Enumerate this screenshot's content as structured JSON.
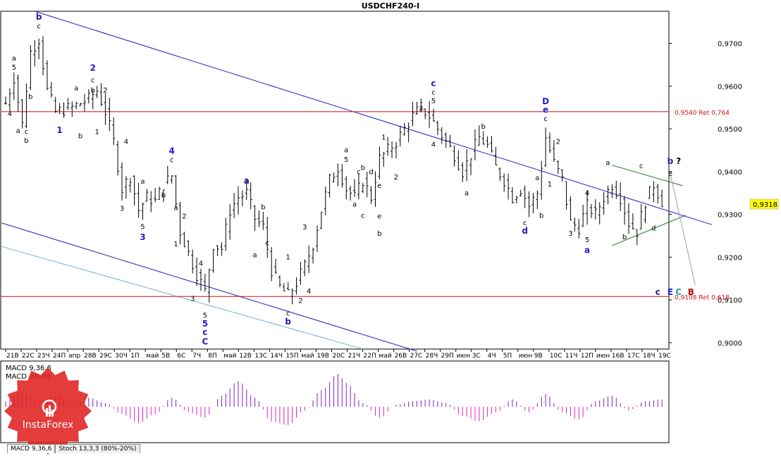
{
  "window": {
    "title": "USDCHF240-I",
    "price_tag": "0,9318"
  },
  "tabs": [
    {
      "label": "MACD 9,36,6",
      "active": true
    },
    {
      "label": "Stoch 13,3,3 (80%-20%)",
      "active": false
    }
  ],
  "brand": {
    "logo_text": "InstaForex",
    "color": "#e02020"
  },
  "colors": {
    "candle": "#000000",
    "channel": "#2020c0",
    "channel_light": "#70b0d8",
    "ret_line": "#d01010",
    "triangle": "#208020",
    "projection": "#a0a0a0",
    "macd_up": "#8020c0",
    "macd_down": "#e020c0"
  },
  "chart_data": {
    "type": "line",
    "symbol": "USDCHF240-I",
    "yaxis": {
      "ylim": [
        0.8985,
        0.9775
      ],
      "ticks": [
        "0,9000",
        "0,9100",
        "0,9200",
        "0,9300",
        "0,9400",
        "0,9500",
        "0,9600",
        "0,9700"
      ],
      "tick_values": [
        0.9,
        0.91,
        0.92,
        0.93,
        0.94,
        0.95,
        0.96,
        0.97
      ],
      "current": 0.9318
    },
    "xaxis": {
      "count": 159,
      "tick_labels": [
        "21B",
        "22C",
        "23Ч",
        "24П",
        "апр",
        "28B",
        "29C",
        "30Ч",
        "1П",
        "май",
        "5B",
        "6C",
        "7Ч",
        "8П",
        "май",
        "12B",
        "13C",
        "14Ч",
        "15П",
        "май",
        "19B",
        "20C",
        "21Ч",
        "22П",
        "май",
        "26B",
        "27C",
        "28Ч",
        "29П",
        "июн",
        "3C",
        "4Ч",
        "5П",
        "июн",
        "9B",
        "10C",
        "11Ч",
        "12П",
        "июн",
        "16B",
        "17C",
        "18Ч",
        "19C"
      ],
      "tick_index": [
        0,
        4,
        8,
        12,
        16,
        20,
        24,
        28,
        32,
        36,
        40,
        44,
        48,
        52,
        56,
        60,
        64,
        68,
        72,
        76,
        80,
        84,
        88,
        92,
        96,
        100,
        104,
        108,
        112,
        116,
        120,
        124,
        128,
        132,
        136,
        140,
        144,
        148,
        152,
        156,
        160,
        164,
        168
      ]
    },
    "anchors": [
      [
        0,
        0.956
      ],
      [
        2,
        0.962
      ],
      [
        4,
        0.951
      ],
      [
        6,
        0.968
      ],
      [
        8,
        0.971
      ],
      [
        10,
        0.959
      ],
      [
        12,
        0.954
      ],
      [
        16,
        0.955
      ],
      [
        20,
        0.957
      ],
      [
        22,
        0.959
      ],
      [
        24,
        0.954
      ],
      [
        26,
        0.947
      ],
      [
        28,
        0.936
      ],
      [
        30,
        0.939
      ],
      [
        32,
        0.931
      ],
      [
        34,
        0.934
      ],
      [
        36,
        0.933
      ],
      [
        38,
        0.937
      ],
      [
        40,
        0.939
      ],
      [
        42,
        0.926
      ],
      [
        44,
        0.921
      ],
      [
        46,
        0.916
      ],
      [
        48,
        0.912
      ],
      [
        50,
        0.923
      ],
      [
        52,
        0.922
      ],
      [
        54,
        0.931
      ],
      [
        56,
        0.934
      ],
      [
        58,
        0.935
      ],
      [
        60,
        0.929
      ],
      [
        62,
        0.927
      ],
      [
        64,
        0.917
      ],
      [
        66,
        0.913
      ],
      [
        68,
        0.911
      ],
      [
        70,
        0.914
      ],
      [
        72,
        0.918
      ],
      [
        74,
        0.923
      ],
      [
        76,
        0.931
      ],
      [
        78,
        0.938
      ],
      [
        80,
        0.941
      ],
      [
        82,
        0.936
      ],
      [
        84,
        0.934
      ],
      [
        86,
        0.938
      ],
      [
        88,
        0.934
      ],
      [
        90,
        0.943
      ],
      [
        92,
        0.945
      ],
      [
        94,
        0.947
      ],
      [
        96,
        0.95
      ],
      [
        98,
        0.953
      ],
      [
        100,
        0.955
      ],
      [
        102,
        0.953
      ],
      [
        104,
        0.95
      ],
      [
        106,
        0.947
      ],
      [
        108,
        0.944
      ],
      [
        110,
        0.94
      ],
      [
        112,
        0.944
      ],
      [
        114,
        0.948
      ],
      [
        116,
        0.946
      ],
      [
        118,
        0.941
      ],
      [
        120,
        0.938
      ],
      [
        122,
        0.934
      ],
      [
        124,
        0.936
      ],
      [
        126,
        0.932
      ],
      [
        128,
        0.935
      ],
      [
        130,
        0.948
      ],
      [
        132,
        0.942
      ],
      [
        134,
        0.938
      ],
      [
        136,
        0.928
      ],
      [
        138,
        0.927
      ],
      [
        140,
        0.932
      ],
      [
        142,
        0.93
      ],
      [
        144,
        0.934
      ],
      [
        146,
        0.937
      ],
      [
        148,
        0.934
      ],
      [
        150,
        0.928
      ],
      [
        152,
        0.926
      ],
      [
        154,
        0.933
      ],
      [
        156,
        0.937
      ],
      [
        158,
        0.933
      ]
    ],
    "macd": {
      "label": "MACD 9,36,6",
      "signal_label": "MACD =0,00",
      "anchors": [
        [
          0,
          0.3
        ],
        [
          4,
          0.8
        ],
        [
          8,
          0.3
        ],
        [
          12,
          0.6
        ],
        [
          16,
          0.1
        ],
        [
          20,
          0.5
        ],
        [
          24,
          0.2
        ],
        [
          28,
          -0.4
        ],
        [
          32,
          -0.9
        ],
        [
          36,
          -0.4
        ],
        [
          40,
          0.5
        ],
        [
          44,
          -0.3
        ],
        [
          48,
          -0.6
        ],
        [
          52,
          0.6
        ],
        [
          56,
          1.4
        ],
        [
          60,
          0.5
        ],
        [
          64,
          -0.8
        ],
        [
          68,
          -1.0
        ],
        [
          72,
          -0.2
        ],
        [
          76,
          0.9
        ],
        [
          80,
          1.8
        ],
        [
          82,
          1.3
        ],
        [
          86,
          0.2
        ],
        [
          90,
          -0.6
        ],
        [
          94,
          0.1
        ],
        [
          98,
          0.3
        ],
        [
          102,
          0.4
        ],
        [
          106,
          0.2
        ],
        [
          110,
          -0.5
        ],
        [
          114,
          -0.8
        ],
        [
          118,
          -0.3
        ],
        [
          122,
          0.4
        ],
        [
          126,
          -0.3
        ],
        [
          130,
          0.7
        ],
        [
          134,
          -0.3
        ],
        [
          138,
          -0.7
        ],
        [
          142,
          0.3
        ],
        [
          146,
          0.6
        ],
        [
          150,
          -0.2
        ],
        [
          154,
          0.3
        ],
        [
          158,
          0.4
        ]
      ]
    },
    "retracements": [
      {
        "value": 0.954,
        "label": "0,9540 Ret 0,764"
      },
      {
        "value": 0.9108,
        "label": "0,9108 Ret 0,618"
      }
    ],
    "trendlines": [
      {
        "role": "channel-upper",
        "from": [
          7,
          0.9775
        ],
        "to": [
          170,
          0.9276
        ]
      },
      {
        "role": "channel-lower",
        "from": [
          -1,
          0.928
        ],
        "to": [
          99,
          0.898
        ]
      },
      {
        "role": "channel-lower-light",
        "from": [
          -1,
          0.9225
        ],
        "to": [
          86,
          0.8985
        ]
      },
      {
        "role": "triangle-top",
        "from": [
          146,
          0.9415
        ],
        "to": [
          163,
          0.9367
        ]
      },
      {
        "role": "triangle-bottom",
        "from": [
          146,
          0.9227
        ],
        "to": [
          163,
          0.9295
        ]
      },
      {
        "role": "projection",
        "from": [
          160,
          0.9395
        ],
        "to": [
          166,
          0.9135
        ]
      }
    ],
    "wave_labels": [
      {
        "text": "b",
        "x": 8,
        "y": 0.9755,
        "color": "#2020a0"
      },
      {
        "text": "c",
        "x": 8,
        "y": 0.9735,
        "color": "#000000"
      },
      {
        "text": "a",
        "x": 2,
        "y": 0.966,
        "color": "#000000"
      },
      {
        "text": "5",
        "x": 2,
        "y": 0.9638,
        "color": "#000000"
      },
      {
        "text": "4",
        "x": 1,
        "y": 0.953,
        "color": "#000000"
      },
      {
        "text": "b",
        "x": 6,
        "y": 0.957,
        "color": "#000000"
      },
      {
        "text": "a",
        "x": 3,
        "y": 0.949,
        "color": "#000000"
      },
      {
        "text": "c",
        "x": 5,
        "y": 0.9488,
        "color": "#000000"
      },
      {
        "text": "b",
        "x": 5,
        "y": 0.9467,
        "color": "#000000"
      },
      {
        "text": "1",
        "x": 13,
        "y": 0.949,
        "color": "#2020d0"
      },
      {
        "text": "b",
        "x": 18,
        "y": 0.9478,
        "color": "#000000"
      },
      {
        "text": "2",
        "x": 21,
        "y": 0.9636,
        "color": "#2020d0"
      },
      {
        "text": "a",
        "x": 17,
        "y": 0.959,
        "color": "#000000"
      },
      {
        "text": "c",
        "x": 21,
        "y": 0.9609,
        "color": "#000000"
      },
      {
        "text": "b",
        "x": 21,
        "y": 0.9585,
        "color": "#000000"
      },
      {
        "text": "2",
        "x": 24,
        "y": 0.9585,
        "color": "#000000"
      },
      {
        "text": "1",
        "x": 22,
        "y": 0.9488,
        "color": "#000000"
      },
      {
        "text": "4",
        "x": 29,
        "y": 0.9465,
        "color": "#000000"
      },
      {
        "text": "3",
        "x": 28,
        "y": 0.9308,
        "color": "#000000"
      },
      {
        "text": "4",
        "x": 40,
        "y": 0.9442,
        "color": "#2020d0"
      },
      {
        "text": "c",
        "x": 40,
        "y": 0.9422,
        "color": "#000000"
      },
      {
        "text": "a",
        "x": 33,
        "y": 0.9372,
        "color": "#000000"
      },
      {
        "text": "b",
        "x": 38,
        "y": 0.934,
        "color": "#000000"
      },
      {
        "text": "5",
        "x": 33,
        "y": 0.9266,
        "color": "#000000"
      },
      {
        "text": "3",
        "x": 33,
        "y": 0.924,
        "color": "#2020d0"
      },
      {
        "text": "a",
        "x": 41,
        "y": 0.931,
        "color": "#000000"
      },
      {
        "text": "2",
        "x": 43,
        "y": 0.929,
        "color": "#000000"
      },
      {
        "text": "1",
        "x": 41,
        "y": 0.9225,
        "color": "#000000"
      },
      {
        "text": "4",
        "x": 47,
        "y": 0.918,
        "color": "#000000"
      },
      {
        "text": "3",
        "x": 45,
        "y": 0.9098,
        "color": "#000000"
      },
      {
        "text": "5",
        "x": 48,
        "y": 0.9058,
        "color": "#000000"
      },
      {
        "text": "5",
        "x": 48,
        "y": 0.9038,
        "color": "#2020d0"
      },
      {
        "text": "c",
        "x": 48,
        "y": 0.9018,
        "color": "#2020d0"
      },
      {
        "text": "C",
        "x": 48,
        "y": 0.8996,
        "color": "#2020d0"
      },
      {
        "text": "a",
        "x": 58,
        "y": 0.9372,
        "color": "#2020a0"
      },
      {
        "text": "b",
        "x": 62,
        "y": 0.9312,
        "color": "#000000"
      },
      {
        "text": "a",
        "x": 60,
        "y": 0.92,
        "color": "#000000"
      },
      {
        "text": "c",
        "x": 63,
        "y": 0.9228,
        "color": "#000000"
      },
      {
        "text": "1",
        "x": 68,
        "y": 0.9195,
        "color": "#000000"
      },
      {
        "text": "3",
        "x": 72,
        "y": 0.9265,
        "color": "#000000"
      },
      {
        "text": "4",
        "x": 73,
        "y": 0.9115,
        "color": "#000000"
      },
      {
        "text": "2",
        "x": 71,
        "y": 0.9093,
        "color": "#000000"
      },
      {
        "text": "c",
        "x": 68,
        "y": 0.9063,
        "color": "#000000"
      },
      {
        "text": "b",
        "x": 68,
        "y": 0.9043,
        "color": "#2020a0"
      },
      {
        "text": "a",
        "x": 82,
        "y": 0.9445,
        "color": "#000000"
      },
      {
        "text": "5",
        "x": 82,
        "y": 0.9423,
        "color": "#000000"
      },
      {
        "text": "c",
        "x": 85,
        "y": 0.9394,
        "color": "#000000"
      },
      {
        "text": "b",
        "x": 86,
        "y": 0.9404,
        "color": "#000000"
      },
      {
        "text": "d",
        "x": 88,
        "y": 0.9394,
        "color": "#000000"
      },
      {
        "text": "a",
        "x": 84,
        "y": 0.9318,
        "color": "#000000"
      },
      {
        "text": "c",
        "x": 86,
        "y": 0.9292,
        "color": "#000000"
      },
      {
        "text": "e",
        "x": 90,
        "y": 0.9362,
        "color": "#000000"
      },
      {
        "text": "b",
        "x": 90,
        "y": 0.925,
        "color": "#000000"
      },
      {
        "text": "e",
        "x": 90,
        "y": 0.929,
        "color": "#000000"
      },
      {
        "text": "1",
        "x": 91,
        "y": 0.9475,
        "color": "#000000"
      },
      {
        "text": "2",
        "x": 94,
        "y": 0.9382,
        "color": "#000000"
      },
      {
        "text": "3",
        "x": 100,
        "y": 0.9542,
        "color": "#000000"
      },
      {
        "text": "c",
        "x": 103,
        "y": 0.96,
        "color": "#2020d0"
      },
      {
        "text": "c",
        "x": 103,
        "y": 0.958,
        "color": "#000000"
      },
      {
        "text": "5",
        "x": 103,
        "y": 0.956,
        "color": "#000000"
      },
      {
        "text": "4",
        "x": 103,
        "y": 0.9458,
        "color": "#000000"
      },
      {
        "text": "b",
        "x": 115,
        "y": 0.95,
        "color": "#000000"
      },
      {
        "text": "a",
        "x": 111,
        "y": 0.9345,
        "color": "#000000"
      },
      {
        "text": "D",
        "x": 130,
        "y": 0.9558,
        "color": "#2020d0"
      },
      {
        "text": "e",
        "x": 130,
        "y": 0.9538,
        "color": "#2020d0"
      },
      {
        "text": "c",
        "x": 130,
        "y": 0.9518,
        "color": "#000000"
      },
      {
        "text": "2",
        "x": 133,
        "y": 0.9465,
        "color": "#000000"
      },
      {
        "text": "a",
        "x": 128,
        "y": 0.938,
        "color": "#000000"
      },
      {
        "text": "1",
        "x": 131,
        "y": 0.9365,
        "color": "#000000"
      },
      {
        "text": "b",
        "x": 129,
        "y": 0.9292,
        "color": "#000000"
      },
      {
        "text": "c",
        "x": 125,
        "y": 0.9275,
        "color": "#000000"
      },
      {
        "text": "d",
        "x": 125,
        "y": 0.9255,
        "color": "#2020a0"
      },
      {
        "text": "4",
        "x": 140,
        "y": 0.9345,
        "color": "#000000"
      },
      {
        "text": "3",
        "x": 136,
        "y": 0.925,
        "color": "#000000"
      },
      {
        "text": "5",
        "x": 140,
        "y": 0.9235,
        "color": "#000000"
      },
      {
        "text": "a",
        "x": 140,
        "y": 0.921,
        "color": "#2020d0"
      },
      {
        "text": "a",
        "x": 145,
        "y": 0.9415,
        "color": "#000000"
      },
      {
        "text": "c",
        "x": 153,
        "y": 0.9408,
        "color": "#000000"
      },
      {
        "text": "b",
        "x": 149,
        "y": 0.9242,
        "color": "#000000"
      },
      {
        "text": "d",
        "x": 156,
        "y": 0.9262,
        "color": "#000000"
      },
      {
        "text": "b",
        "x": 160,
        "y": 0.9418,
        "color": "#2020a0"
      },
      {
        "text": "?",
        "x": 162,
        "y": 0.9418,
        "color": "#000000"
      },
      {
        "text": "e",
        "x": 160,
        "y": 0.939,
        "color": "#000000"
      },
      {
        "text": "c",
        "x": 157,
        "y": 0.9112,
        "color": "#2020a0"
      },
      {
        "text": "E",
        "x": 160,
        "y": 0.9112,
        "color": "#2020d0"
      },
      {
        "text": "C",
        "x": 162,
        "y": 0.9112,
        "color": "#20a0a0"
      },
      {
        "text": "B",
        "x": 165,
        "y": 0.9112,
        "color": "#b01010"
      }
    ]
  }
}
